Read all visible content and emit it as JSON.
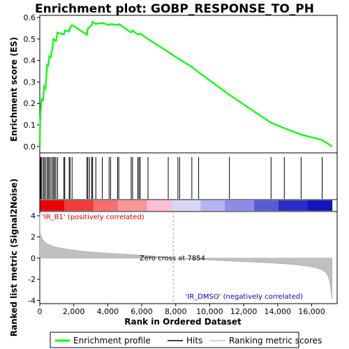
{
  "chart_data": {
    "type": "line",
    "title": "Enrichment plot: GOBP_RESPONSE_TO_PH",
    "xlabel": "Rank in Ordered Dataset",
    "xlim": [
      0,
      17500
    ],
    "x_ticks": [
      0,
      2000,
      4000,
      6000,
      8000,
      10000,
      12000,
      14000,
      16000
    ],
    "x_tick_labels": [
      "0",
      "2,000",
      "4,000",
      "6,000",
      "8,000",
      "10,000",
      "12,000",
      "14,000",
      "16,000"
    ],
    "top_panel": {
      "ylabel": "Enrichment score (ES)",
      "ylim": [
        -0.03,
        0.61
      ],
      "y_ticks": [
        0.0,
        0.1,
        0.2,
        0.3,
        0.4,
        0.5,
        0.6
      ],
      "y_tick_labels": [
        "0.0",
        "0.1",
        "0.2",
        "0.3",
        "0.4",
        "0.5",
        "0.6"
      ],
      "series": [
        {
          "name": "Enrichment profile",
          "color": "#00ff00",
          "x": [
            0,
            20,
            60,
            110,
            200,
            260,
            340,
            430,
            500,
            560,
            650,
            740,
            810,
            880,
            950,
            1050,
            1420,
            1470,
            1730,
            1780,
            1900,
            2780,
            2830,
            2930,
            3060,
            3110,
            3300,
            3680,
            4080,
            4170,
            4580,
            4650,
            5380,
            5460,
            5770,
            5840,
            5910,
            6370,
            7560,
            8130,
            8230,
            8950,
            9350,
            11160,
            13610,
            14390,
            15380,
            16620,
            17200
          ],
          "y": [
            0.0,
            0.11,
            0.18,
            0.22,
            0.215,
            0.28,
            0.27,
            0.38,
            0.375,
            0.42,
            0.415,
            0.455,
            0.5,
            0.495,
            0.49,
            0.53,
            0.52,
            0.54,
            0.535,
            0.55,
            0.565,
            0.52,
            0.55,
            0.555,
            0.565,
            0.58,
            0.57,
            0.575,
            0.565,
            0.57,
            0.565,
            0.57,
            0.53,
            0.54,
            0.52,
            0.525,
            0.525,
            0.5,
            0.44,
            0.41,
            0.405,
            0.37,
            0.345,
            0.24,
            0.11,
            0.085,
            0.055,
            0.03,
            0.0
          ]
        }
      ],
      "hits": [
        20,
        60,
        110,
        200,
        260,
        340,
        430,
        500,
        560,
        650,
        740,
        810,
        880,
        950,
        1050,
        1420,
        1470,
        1730,
        1780,
        1900,
        2780,
        2830,
        2930,
        3060,
        3110,
        3300,
        3680,
        4080,
        4170,
        4580,
        4650,
        5380,
        5460,
        5770,
        5840,
        5910,
        6370,
        7560,
        8130,
        8230,
        8950,
        9350,
        11160,
        13610,
        14390,
        15380,
        16620
      ]
    },
    "bottom_panel": {
      "ylabel": "Ranked list metric (Signal2Noise)",
      "ylim": [
        -4.3,
        4.4
      ],
      "y_ticks": [
        -4,
        -2,
        0,
        2,
        4
      ],
      "y_tick_labels": [
        "-4",
        "-2",
        "0",
        "2",
        "4"
      ],
      "zero_cross_rank": 7854,
      "metric_curve": {
        "x": [
          0,
          10,
          50,
          150,
          300,
          500,
          800,
          1200,
          1800,
          2500,
          3500,
          4500,
          5500,
          6500,
          7000,
          7500,
          7854,
          8500,
          9500,
          10500,
          11500,
          12500,
          13500,
          14500,
          15200,
          15800,
          16200,
          16500,
          16700,
          16850,
          16950,
          17050,
          17120,
          17200
        ],
        "y": [
          4.2,
          2.8,
          2.2,
          1.8,
          1.5,
          1.3,
          1.1,
          0.95,
          0.8,
          0.65,
          0.52,
          0.42,
          0.33,
          0.22,
          0.15,
          0.08,
          0.0,
          -0.08,
          -0.15,
          -0.22,
          -0.3,
          -0.37,
          -0.45,
          -0.55,
          -0.65,
          -0.78,
          -0.9,
          -1.05,
          -1.2,
          -1.4,
          -1.65,
          -2.1,
          -2.8,
          -3.9
        ]
      },
      "annotations": {
        "positive": "'IR_B1' (positively correlated)",
        "negative": "'IR_DMSO' (negatively correlated)",
        "zero_cross": "Zero cross at 7854"
      },
      "colors": {
        "positive": "#dd0000",
        "negative": "#0000cc",
        "fill": "#c0c0c0"
      }
    },
    "legend": [
      {
        "label": "Enrichment profile",
        "color": "#00ff00"
      },
      {
        "label": "Hits",
        "color": "#000000"
      },
      {
        "label": "Ranking metric scores",
        "color": "#c0c0c0"
      }
    ],
    "grid": false
  }
}
